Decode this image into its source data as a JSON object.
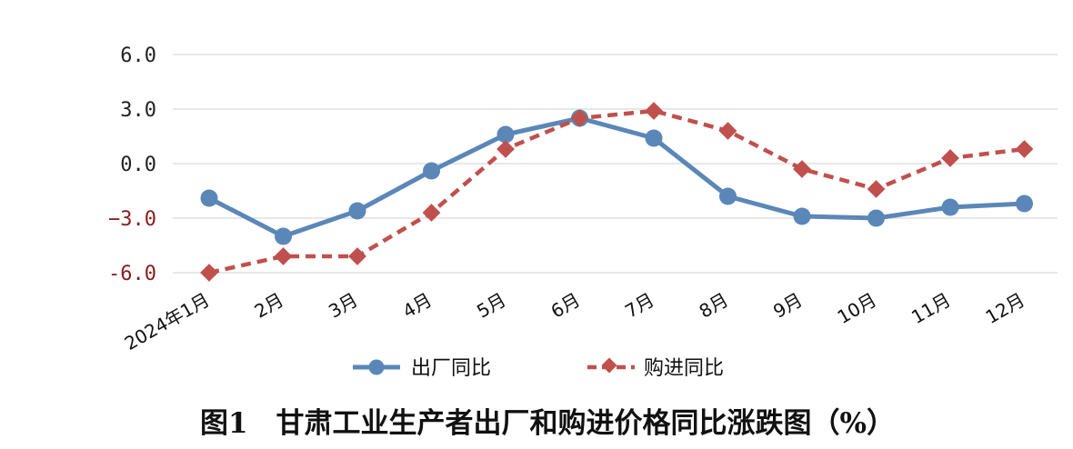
{
  "chart_data": {
    "type": "line",
    "categories": [
      "2024年1月",
      "2月",
      "3月",
      "4月",
      "5月",
      "6月",
      "7月",
      "8月",
      "9月",
      "10月",
      "11月",
      "12月"
    ],
    "series": [
      {
        "name": "出厂同比",
        "values": [
          -1.9,
          -4.0,
          -2.6,
          -0.4,
          1.6,
          2.5,
          1.4,
          -1.8,
          -2.9,
          -3.0,
          -2.4,
          -2.2
        ],
        "color": "#5b87b8",
        "style": "solid",
        "marker": "circle"
      },
      {
        "name": "购进同比",
        "values": [
          -6.0,
          -5.1,
          -5.1,
          -2.7,
          0.8,
          2.5,
          2.9,
          1.8,
          -0.3,
          -1.4,
          0.3,
          0.8
        ],
        "color": "#c0504d",
        "style": "dashed",
        "marker": "diamond"
      }
    ],
    "yticks": [
      "6.0",
      "3.0",
      "0.0",
      "−3.0",
      "-6.0"
    ],
    "ytick_values": [
      6,
      3,
      0,
      -3,
      -6
    ],
    "ylim": [
      -6,
      6
    ],
    "grid": true,
    "legend_position": "bottom",
    "title": "图1　甘肃工业生产者出厂和购进价格同比涨跌图（%）"
  }
}
